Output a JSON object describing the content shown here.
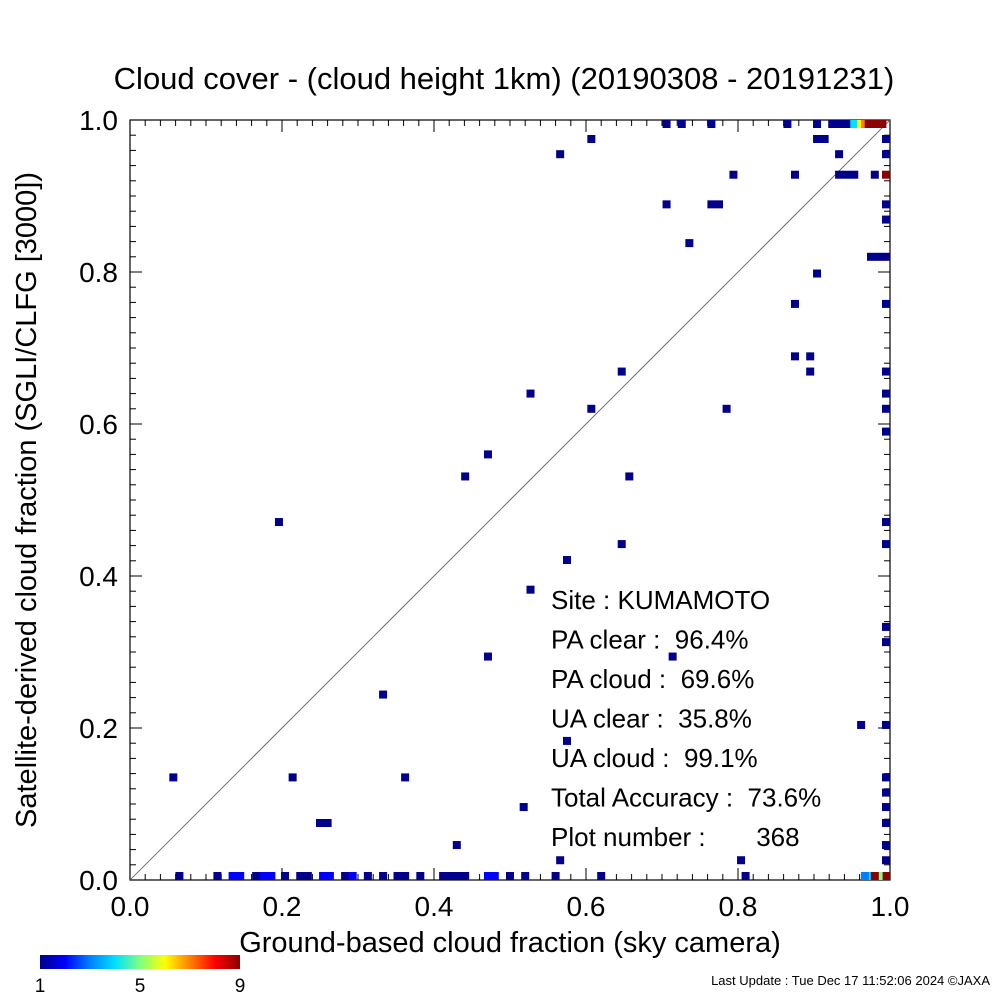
{
  "chart_data": {
    "type": "scatter",
    "title": "Cloud cover - (cloud height 1km)  (20190308 - 20191231)",
    "xlabel": "Ground-based cloud fraction (sky camera)",
    "ylabel": "Satellite-derived cloud fraction (SGLI/CLFG [3000])",
    "xlim": [
      0.0,
      1.0
    ],
    "ylim": [
      0.0,
      1.0
    ],
    "xticks": [
      "0.0",
      "0.2",
      "0.4",
      "0.6",
      "0.8",
      "1.0"
    ],
    "yticks": [
      "0.0",
      "0.2",
      "0.4",
      "0.6",
      "0.8",
      "1.0"
    ],
    "reference_line": "1:1 diagonal",
    "grid": false,
    "colorbar": {
      "label_min": "1",
      "label_mid": "5",
      "label_max": "9",
      "colors": [
        "#00008b",
        "#0000ff",
        "#0080ff",
        "#00e0ff",
        "#80ff80",
        "#ffff00",
        "#ff8000",
        "#ff0000",
        "#8b0000"
      ]
    },
    "stats": [
      {
        "label": "Site : ",
        "value": "KUMAMOTO"
      },
      {
        "label": "PA clear :  ",
        "value": "96.4%"
      },
      {
        "label": "PA cloud :  ",
        "value": "69.6%"
      },
      {
        "label": "UA clear :  ",
        "value": "35.8%"
      },
      {
        "label": "UA cloud :  ",
        "value": "99.1%"
      },
      {
        "label": "Total Accuracy :  ",
        "value": "73.6%"
      },
      {
        "label": "Plot number :       ",
        "value": "368"
      }
    ],
    "points": [
      {
        "x": 0.057,
        "y": 0.135,
        "count": 1
      },
      {
        "x": 0.196,
        "y": 0.471,
        "count": 1
      },
      {
        "x": 0.214,
        "y": 0.135,
        "count": 1
      },
      {
        "x": 0.25,
        "y": 0.075,
        "count": 1
      },
      {
        "x": 0.26,
        "y": 0.075,
        "count": 1
      },
      {
        "x": 0.333,
        "y": 0.244,
        "count": 1
      },
      {
        "x": 0.362,
        "y": 0.135,
        "count": 1
      },
      {
        "x": 0.43,
        "y": 0.046,
        "count": 1
      },
      {
        "x": 0.441,
        "y": 0.531,
        "count": 1
      },
      {
        "x": 0.471,
        "y": 0.56,
        "count": 1
      },
      {
        "x": 0.471,
        "y": 0.294,
        "count": 1
      },
      {
        "x": 0.518,
        "y": 0.096,
        "count": 1
      },
      {
        "x": 0.527,
        "y": 0.64,
        "count": 1
      },
      {
        "x": 0.527,
        "y": 0.382,
        "count": 1
      },
      {
        "x": 0.566,
        "y": 0.955,
        "count": 1
      },
      {
        "x": 0.566,
        "y": 0.026,
        "count": 1
      },
      {
        "x": 0.575,
        "y": 0.421,
        "count": 1
      },
      {
        "x": 0.575,
        "y": 0.183,
        "count": 1
      },
      {
        "x": 0.607,
        "y": 0.975,
        "count": 1
      },
      {
        "x": 0.607,
        "y": 0.62,
        "count": 1
      },
      {
        "x": 0.647,
        "y": 0.669,
        "count": 1
      },
      {
        "x": 0.647,
        "y": 0.442,
        "count": 1
      },
      {
        "x": 0.657,
        "y": 0.531,
        "count": 1
      },
      {
        "x": 0.706,
        "y": 0.889,
        "count": 1
      },
      {
        "x": 0.714,
        "y": 0.294,
        "count": 1
      },
      {
        "x": 0.736,
        "y": 0.838,
        "count": 1
      },
      {
        "x": 0.765,
        "y": 0.889,
        "count": 1
      },
      {
        "x": 0.775,
        "y": 0.889,
        "count": 1
      },
      {
        "x": 0.785,
        "y": 0.62,
        "count": 1
      },
      {
        "x": 0.794,
        "y": 0.928,
        "count": 1
      },
      {
        "x": 0.804,
        "y": 0.026,
        "count": 1
      },
      {
        "x": 0.875,
        "y": 0.928,
        "count": 1
      },
      {
        "x": 0.875,
        "y": 0.758,
        "count": 1
      },
      {
        "x": 0.875,
        "y": 0.689,
        "count": 1
      },
      {
        "x": 0.895,
        "y": 0.689,
        "count": 1
      },
      {
        "x": 0.895,
        "y": 0.669,
        "count": 1
      },
      {
        "x": 0.904,
        "y": 0.798,
        "count": 1
      },
      {
        "x": 0.904,
        "y": 0.975,
        "count": 1
      },
      {
        "x": 0.914,
        "y": 0.975,
        "count": 1
      },
      {
        "x": 0.933,
        "y": 0.928,
        "count": 1
      },
      {
        "x": 0.943,
        "y": 0.928,
        "count": 1
      },
      {
        "x": 0.953,
        "y": 0.928,
        "count": 1
      },
      {
        "x": 0.933,
        "y": 0.955,
        "count": 1
      },
      {
        "x": 0.962,
        "y": 0.204,
        "count": 1
      },
      {
        "x": 0.98,
        "y": 0.928,
        "count": 1
      },
      {
        "x": 0.975,
        "y": 0.82,
        "count": 1
      },
      {
        "x": 0.985,
        "y": 0.82,
        "count": 1
      },
      {
        "x": 0.706,
        "y": 0.995,
        "count": 1
      },
      {
        "x": 0.726,
        "y": 0.995,
        "count": 1
      },
      {
        "x": 0.765,
        "y": 0.995,
        "count": 1
      },
      {
        "x": 0.865,
        "y": 0.995,
        "count": 1
      },
      {
        "x": 0.904,
        "y": 0.995,
        "count": 1
      },
      {
        "x": 0.924,
        "y": 0.995,
        "count": 1
      },
      {
        "x": 0.933,
        "y": 0.995,
        "count": 1
      },
      {
        "x": 0.943,
        "y": 0.995,
        "count": 1
      },
      {
        "x": 0.953,
        "y": 0.995,
        "count": 4
      },
      {
        "x": 0.962,
        "y": 0.995,
        "count": 6
      },
      {
        "x": 0.967,
        "y": 0.995,
        "count": 7
      },
      {
        "x": 0.972,
        "y": 0.995,
        "count": 9
      },
      {
        "x": 0.98,
        "y": 0.995,
        "count": 9
      },
      {
        "x": 0.99,
        "y": 0.995,
        "count": 9
      },
      {
        "x": 0.995,
        "y": 0.975,
        "count": 1
      },
      {
        "x": 0.995,
        "y": 0.955,
        "count": 1
      },
      {
        "x": 0.995,
        "y": 0.928,
        "count": 9
      },
      {
        "x": 0.995,
        "y": 0.889,
        "count": 1
      },
      {
        "x": 0.995,
        "y": 0.869,
        "count": 1
      },
      {
        "x": 0.995,
        "y": 0.82,
        "count": 1
      },
      {
        "x": 0.995,
        "y": 0.758,
        "count": 1
      },
      {
        "x": 0.995,
        "y": 0.669,
        "count": 1
      },
      {
        "x": 0.995,
        "y": 0.64,
        "count": 1
      },
      {
        "x": 0.995,
        "y": 0.62,
        "count": 1
      },
      {
        "x": 0.995,
        "y": 0.59,
        "count": 1
      },
      {
        "x": 0.995,
        "y": 0.471,
        "count": 1
      },
      {
        "x": 0.995,
        "y": 0.442,
        "count": 1
      },
      {
        "x": 0.995,
        "y": 0.333,
        "count": 1
      },
      {
        "x": 0.995,
        "y": 0.313,
        "count": 1
      },
      {
        "x": 0.995,
        "y": 0.204,
        "count": 1
      },
      {
        "x": 0.995,
        "y": 0.135,
        "count": 1
      },
      {
        "x": 0.995,
        "y": 0.115,
        "count": 1
      },
      {
        "x": 0.995,
        "y": 0.096,
        "count": 1
      },
      {
        "x": 0.995,
        "y": 0.075,
        "count": 1
      },
      {
        "x": 0.995,
        "y": 0.046,
        "count": 1
      },
      {
        "x": 0.995,
        "y": 0.026,
        "count": 1
      },
      {
        "x": 0.995,
        "y": 0.005,
        "count": 9
      },
      {
        "x": 0.985,
        "y": 0.005,
        "count": 5
      },
      {
        "x": 0.975,
        "y": 0.005,
        "count": 4
      },
      {
        "x": 0.967,
        "y": 0.005,
        "count": 3
      },
      {
        "x": 0.065,
        "y": 0.005,
        "count": 1
      },
      {
        "x": 0.115,
        "y": 0.005,
        "count": 1
      },
      {
        "x": 0.135,
        "y": 0.005,
        "count": 2
      },
      {
        "x": 0.145,
        "y": 0.005,
        "count": 2
      },
      {
        "x": 0.166,
        "y": 0.005,
        "count": 1
      },
      {
        "x": 0.176,
        "y": 0.005,
        "count": 2
      },
      {
        "x": 0.186,
        "y": 0.005,
        "count": 2
      },
      {
        "x": 0.204,
        "y": 0.005,
        "count": 1
      },
      {
        "x": 0.224,
        "y": 0.005,
        "count": 1
      },
      {
        "x": 0.234,
        "y": 0.005,
        "count": 1
      },
      {
        "x": 0.254,
        "y": 0.005,
        "count": 2
      },
      {
        "x": 0.263,
        "y": 0.005,
        "count": 2
      },
      {
        "x": 0.283,
        "y": 0.005,
        "count": 1
      },
      {
        "x": 0.293,
        "y": 0.005,
        "count": 2
      },
      {
        "x": 0.313,
        "y": 0.005,
        "count": 1
      },
      {
        "x": 0.333,
        "y": 0.005,
        "count": 1
      },
      {
        "x": 0.352,
        "y": 0.005,
        "count": 1
      },
      {
        "x": 0.362,
        "y": 0.005,
        "count": 1
      },
      {
        "x": 0.382,
        "y": 0.005,
        "count": 1
      },
      {
        "x": 0.412,
        "y": 0.005,
        "count": 1
      },
      {
        "x": 0.421,
        "y": 0.005,
        "count": 1
      },
      {
        "x": 0.431,
        "y": 0.005,
        "count": 1
      },
      {
        "x": 0.441,
        "y": 0.005,
        "count": 1
      },
      {
        "x": 0.471,
        "y": 0.005,
        "count": 2
      },
      {
        "x": 0.48,
        "y": 0.005,
        "count": 2
      },
      {
        "x": 0.5,
        "y": 0.005,
        "count": 1
      },
      {
        "x": 0.52,
        "y": 0.005,
        "count": 1
      },
      {
        "x": 0.56,
        "y": 0.005,
        "count": 1
      },
      {
        "x": 0.62,
        "y": 0.005,
        "count": 1
      },
      {
        "x": 0.81,
        "y": 0.005,
        "count": 1
      },
      {
        "x": 0.98,
        "y": 0.005,
        "count": 9
      }
    ]
  },
  "footer": {
    "last_update": "Last Update : Tue Dec 17 11:52:06 2024  ©JAXA"
  }
}
